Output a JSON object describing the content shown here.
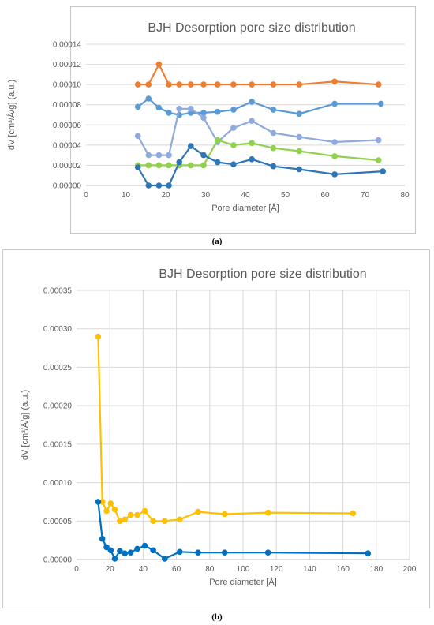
{
  "figures": [
    {
      "caption": "(a)"
    },
    {
      "caption": "(b)"
    }
  ],
  "chart_data": [
    {
      "type": "line",
      "title": "BJH Desorption pore size distribution",
      "xlabel": "Pore diameter [Å]",
      "ylabel": "dV [cm³/Å/g] (a.u.)",
      "xlim": [
        0,
        80
      ],
      "ylim": [
        0,
        0.00014
      ],
      "x_ticks": [
        "0",
        "10",
        "20",
        "30",
        "40",
        "50",
        "60",
        "70",
        "80"
      ],
      "y_ticks": [
        "0.00000",
        "0.00002",
        "0.00004",
        "0.00006",
        "0.00008",
        "0.00010",
        "0.00012",
        "0.00014"
      ],
      "grid": "horizontal",
      "series": [
        {
          "color": "#ed7d31",
          "x": [
            13,
            15.7,
            18.3,
            20.8,
            23.4,
            26.3,
            29.5,
            33,
            37,
            41.6,
            47,
            53.5,
            62.4,
            73.4
          ],
          "y": [
            0.0001,
            0.0001,
            0.00012,
            0.0001,
            0.0001,
            0.0001,
            0.0001,
            0.0001,
            0.0001,
            0.0001,
            0.0001,
            0.0001,
            0.000103,
            0.0001
          ]
        },
        {
          "color": "#5b9bd5",
          "x": [
            13,
            15.7,
            18.3,
            20.8,
            23.4,
            26.3,
            29.5,
            33,
            37,
            41.6,
            47,
            53.5,
            62.4,
            74
          ],
          "y": [
            7.8e-05,
            8.6e-05,
            7.7e-05,
            7.2e-05,
            7e-05,
            7.2e-05,
            7.2e-05,
            7.3e-05,
            7.5e-05,
            8.3e-05,
            7.5e-05,
            7.1e-05,
            8.1e-05,
            8.1e-05
          ]
        },
        {
          "color": "#8faadc",
          "x": [
            13,
            15.7,
            18.3,
            20.8,
            23.4,
            26.3,
            29.5,
            33,
            37,
            41.6,
            47,
            53.5,
            62.4,
            73.4
          ],
          "y": [
            4.9e-05,
            3e-05,
            3e-05,
            3e-05,
            7.6e-05,
            7.6e-05,
            6.7e-05,
            4.3e-05,
            5.7e-05,
            6.4e-05,
            5.2e-05,
            4.8e-05,
            4.3e-05,
            4.5e-05
          ]
        },
        {
          "color": "#92d050",
          "x": [
            13,
            15.7,
            18.3,
            20.8,
            23.4,
            26.3,
            29.5,
            33,
            37,
            41.6,
            47,
            53.5,
            62.4,
            73.4
          ],
          "y": [
            2e-05,
            2e-05,
            2e-05,
            2e-05,
            2e-05,
            2e-05,
            2e-05,
            4.5e-05,
            4e-05,
            4.2e-05,
            3.7e-05,
            3.4e-05,
            2.9e-05,
            2.5e-05
          ]
        },
        {
          "color": "#2e75b6",
          "x": [
            13,
            15.7,
            18.3,
            20.8,
            23.4,
            26.3,
            29.5,
            33,
            37,
            41.6,
            47,
            53.5,
            62.4,
            74.5
          ],
          "y": [
            1.8e-05,
            0,
            0,
            0,
            2.3e-05,
            3.9e-05,
            3e-05,
            2.3e-05,
            2.1e-05,
            2.6e-05,
            1.9e-05,
            1.6e-05,
            1.1e-05,
            1.4e-05
          ]
        }
      ]
    },
    {
      "type": "line",
      "title": "BJH Desorption pore size distribution",
      "xlabel": "Pore diameter [Å]",
      "ylabel": "dV [cm³/Å/g] (a.u.)",
      "xlim": [
        0,
        200
      ],
      "ylim": [
        0,
        0.00035
      ],
      "x_ticks": [
        "0",
        "20",
        "40",
        "60",
        "80",
        "100",
        "120",
        "140",
        "160",
        "180",
        "200"
      ],
      "y_ticks": [
        "0.00000",
        "0.00005",
        "0.00010",
        "0.00015",
        "0.00020",
        "0.00025",
        "0.00030",
        "0.00035"
      ],
      "grid": "both",
      "series": [
        {
          "color": "#ffc000",
          "x": [
            13,
            15.5,
            18,
            20.5,
            23,
            26,
            29,
            32.5,
            36.5,
            41,
            46,
            53,
            62,
            73,
            89,
            115,
            166
          ],
          "y": [
            0.00029,
            7.5e-05,
            6.3e-05,
            7.3e-05,
            6.5e-05,
            5e-05,
            5.2e-05,
            5.8e-05,
            5.8e-05,
            6.3e-05,
            5e-05,
            5e-05,
            5.2e-05,
            6.2e-05,
            5.9e-05,
            6.1e-05,
            6e-05
          ]
        },
        {
          "color": "#0070c0",
          "x": [
            13,
            15.5,
            18,
            20.5,
            23,
            26,
            29,
            32.5,
            36.5,
            41,
            46,
            53,
            62,
            73,
            89,
            115,
            175
          ],
          "y": [
            7.5e-05,
            2.7e-05,
            1.6e-05,
            1.2e-05,
            1e-06,
            1.1e-05,
            8e-06,
            9e-06,
            1.4e-05,
            1.8e-05,
            1.2e-05,
            1e-06,
            1e-05,
            9e-06,
            9e-06,
            9e-06,
            8e-06
          ]
        }
      ]
    }
  ]
}
